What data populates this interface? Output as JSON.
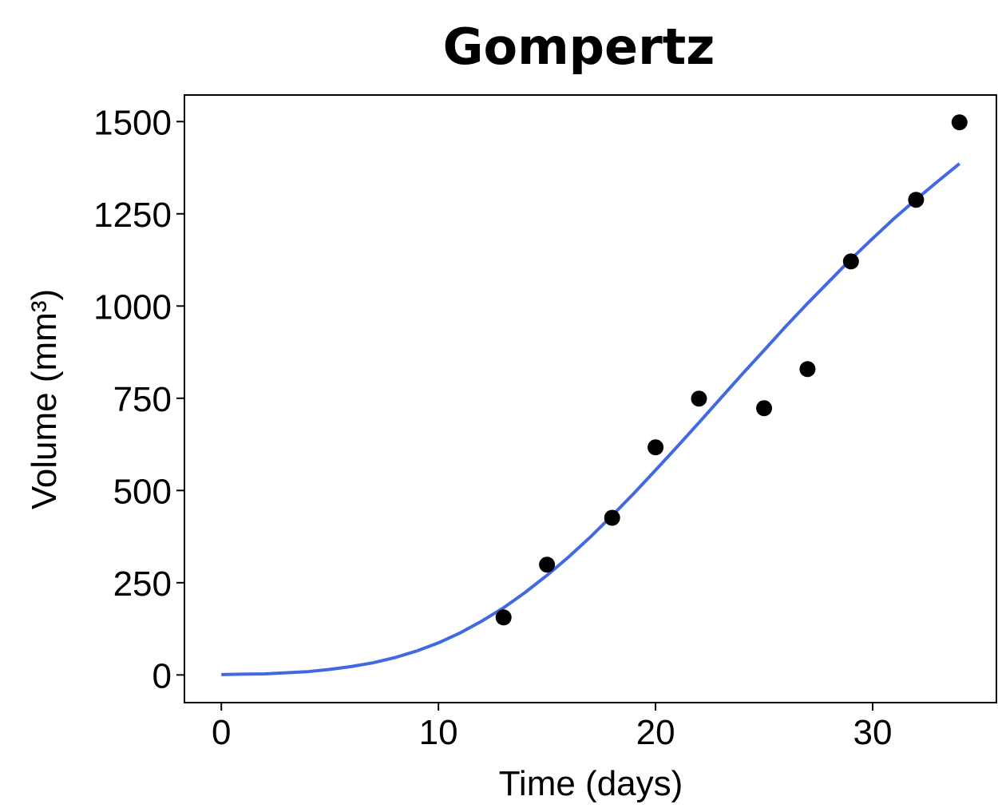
{
  "chart_data": {
    "type": "line",
    "title": "Gompertz",
    "x_label": "Time (days)",
    "y_label": "Volume (mm³)",
    "xlim": [
      -1.7,
      35.7
    ],
    "xticks": [
      0,
      10,
      20,
      30
    ],
    "ylim": [
      -75,
      1572
    ],
    "yticks": [
      0,
      250,
      500,
      750,
      1000,
      1250,
      1500
    ],
    "grid": false,
    "series": [
      {
        "type": "line",
        "color": "#4169e1",
        "x": [
          0,
          1,
          2,
          3,
          4,
          5,
          6,
          7,
          8,
          9,
          10,
          11,
          12,
          13,
          14,
          15,
          16,
          17,
          18,
          19,
          20,
          21,
          22,
          23,
          24,
          25,
          26,
          27,
          28,
          29,
          30,
          31,
          32,
          33,
          34
        ],
        "values": [
          1,
          2,
          3,
          6,
          9,
          15,
          23,
          33,
          47,
          65,
          87,
          114,
          146,
          182,
          224,
          270,
          320,
          374,
          432,
          492,
          555,
          619,
          684,
          750,
          816,
          880,
          945,
          1007,
          1067,
          1127,
          1183,
          1238,
          1289,
          1338,
          1386
        ]
      },
      {
        "type": "scatter",
        "color": "#000000",
        "x": [
          13,
          15,
          18,
          20,
          22,
          25,
          27,
          29,
          32,
          34
        ],
        "values": [
          156,
          299,
          426,
          617,
          749,
          723,
          829,
          1121,
          1288,
          1498
        ]
      }
    ]
  }
}
